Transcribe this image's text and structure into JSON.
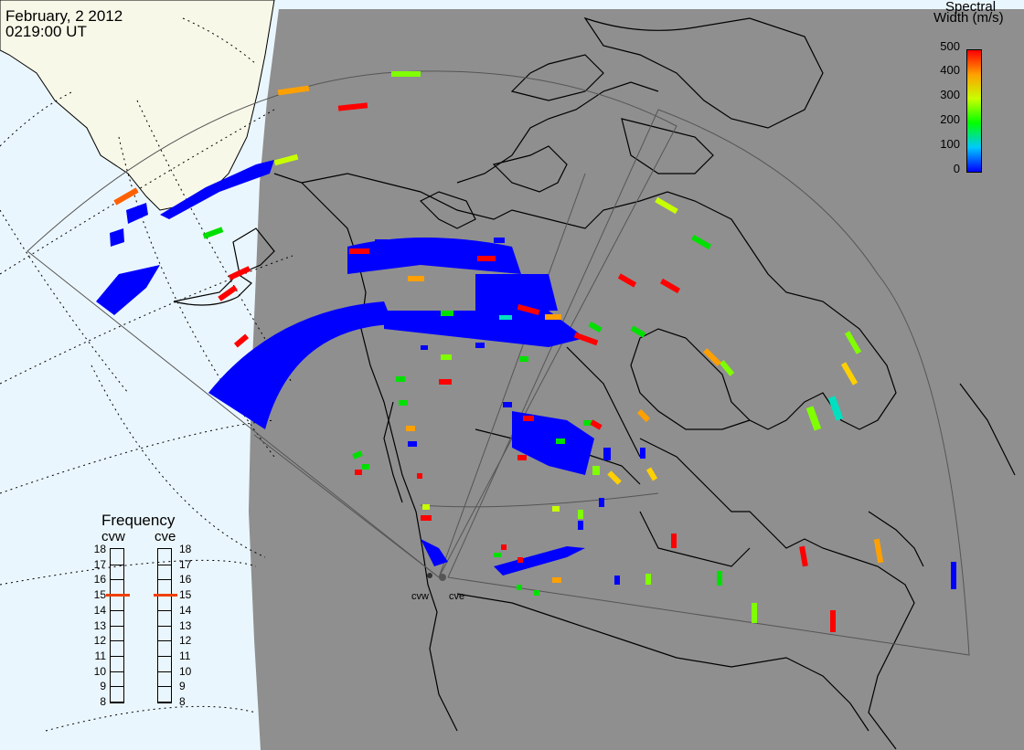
{
  "header": {
    "date": "February, 2 2012",
    "time": "0219:00 UT"
  },
  "colorbar": {
    "title_line1": "Spectral",
    "title_line2": "Width (m/s)",
    "ticks": [
      "500",
      "400",
      "300",
      "200",
      "100",
      "0"
    ],
    "range": [
      0,
      500
    ],
    "colors": [
      "#0000ff",
      "#00c8ff",
      "#00ff00",
      "#c8ff00",
      "#ffa000",
      "#ff0000"
    ]
  },
  "frequency_panel": {
    "title": "Frequency",
    "left_label": "cvw",
    "right_label": "cve",
    "ticks": [
      "18",
      "17",
      "16",
      "15",
      "14",
      "13",
      "12",
      "11",
      "10",
      "9",
      "8"
    ],
    "cvw_value_mhz": 15,
    "cve_value_mhz": 15,
    "marker_color": "#f04000"
  },
  "radars": {
    "west_label": "cvw",
    "east_label": "cve"
  },
  "map": {
    "ocean_color": "#eaf6fd",
    "land_outside_color": "#f8f8e8",
    "night_color": "#8f8f8f",
    "coast_color": "#000000",
    "fov_color": "#555555"
  }
}
